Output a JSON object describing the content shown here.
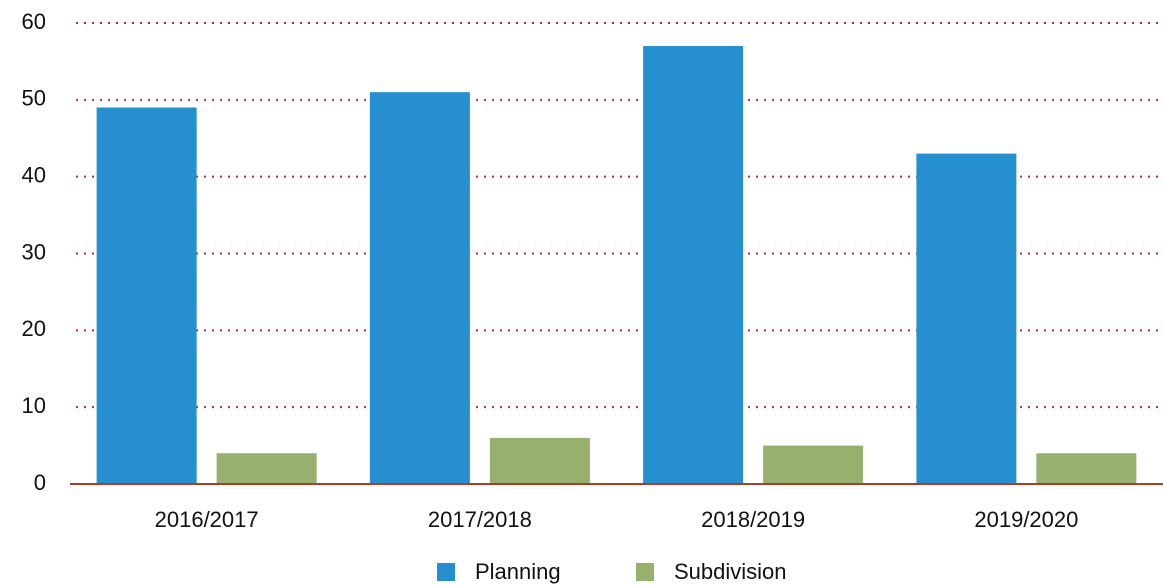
{
  "chart_data": {
    "type": "bar",
    "categories": [
      "2016/2017",
      "2017/2018",
      "2018/2019",
      "2019/2020"
    ],
    "series": [
      {
        "name": "Planning",
        "color": "#258fd0",
        "values": [
          49,
          51,
          57,
          43
        ]
      },
      {
        "name": "Subdivision",
        "color": "#97b06e",
        "values": [
          4,
          6,
          5,
          4
        ]
      }
    ],
    "ylim": [
      0,
      60
    ],
    "yticks": [
      0,
      10,
      20,
      30,
      40,
      50,
      60
    ],
    "grid": true,
    "grid_color": "#c0292b",
    "legend": "bottom"
  }
}
